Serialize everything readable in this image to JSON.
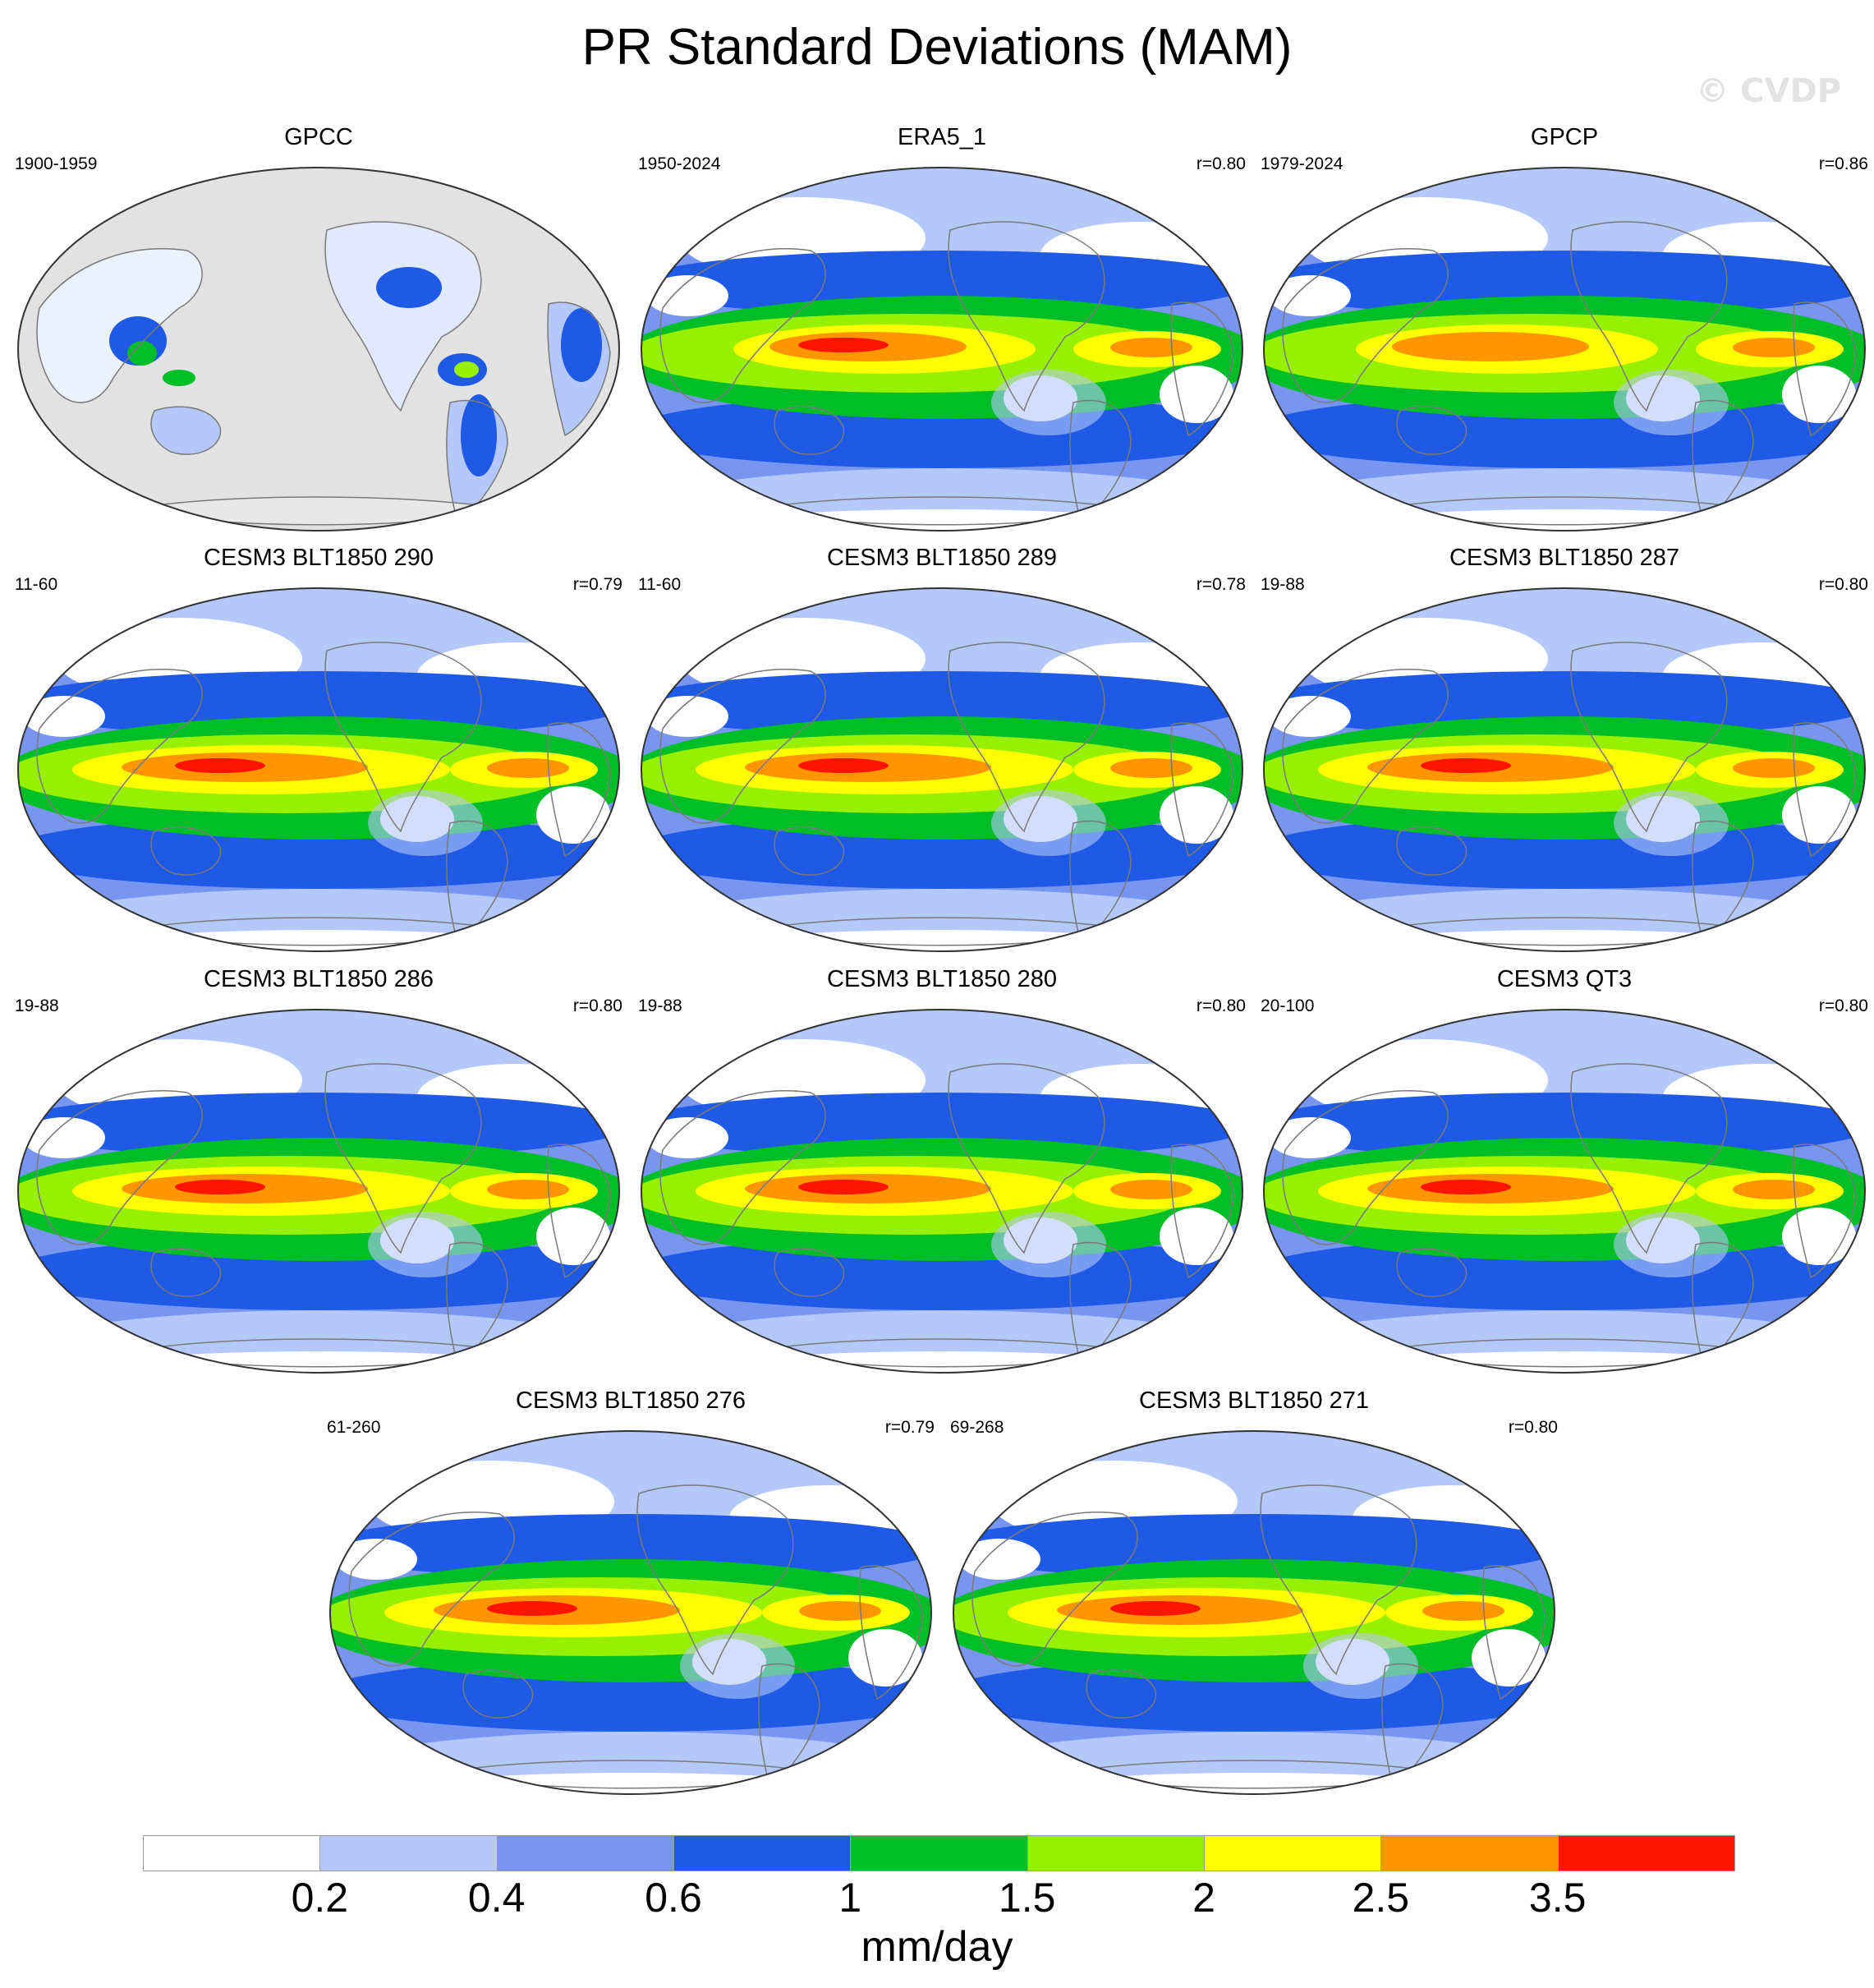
{
  "title": "PR Standard Deviations (MAM)",
  "watermark": "© CVDP",
  "panels": [
    {
      "title": "GPCC",
      "period": "1900-1959",
      "r": "",
      "style": "obs_land"
    },
    {
      "title": "ERA5_1",
      "period": "1950-2024",
      "r": "r=0.80",
      "style": "era5"
    },
    {
      "title": "GPCP",
      "period": "1979-2024",
      "r": "r=0.86",
      "style": "gpcp"
    },
    {
      "title": "CESM3 BLT1850 290",
      "period": "11-60",
      "r": "r=0.79",
      "style": "model"
    },
    {
      "title": "CESM3 BLT1850 289",
      "period": "11-60",
      "r": "r=0.78",
      "style": "model"
    },
    {
      "title": "CESM3 BLT1850 287",
      "period": "19-88",
      "r": "r=0.80",
      "style": "model"
    },
    {
      "title": "CESM3 BLT1850 286",
      "period": "19-88",
      "r": "r=0.80",
      "style": "model"
    },
    {
      "title": "CESM3 BLT1850 280",
      "period": "19-88",
      "r": "r=0.80",
      "style": "model"
    },
    {
      "title": "CESM3 QT3",
      "period": "20-100",
      "r": "r=0.80",
      "style": "model"
    },
    {
      "title": "CESM3 BLT1850 276",
      "period": "61-260",
      "r": "r=0.79",
      "style": "model"
    },
    {
      "title": "CESM3 BLT1850 271",
      "period": "69-268",
      "r": "r=0.80",
      "style": "model"
    }
  ],
  "colorbar": {
    "unit": "mm/day",
    "colors": [
      "#ffffff",
      "#b4c8fa",
      "#7896f0",
      "#1e5ae6",
      "#00be28",
      "#96f000",
      "#ffff00",
      "#ff9600",
      "#ff1400"
    ],
    "labels": [
      "0.2",
      "0.4",
      "0.6",
      "1",
      "1.5",
      "2",
      "2.5",
      "3.5"
    ]
  }
}
